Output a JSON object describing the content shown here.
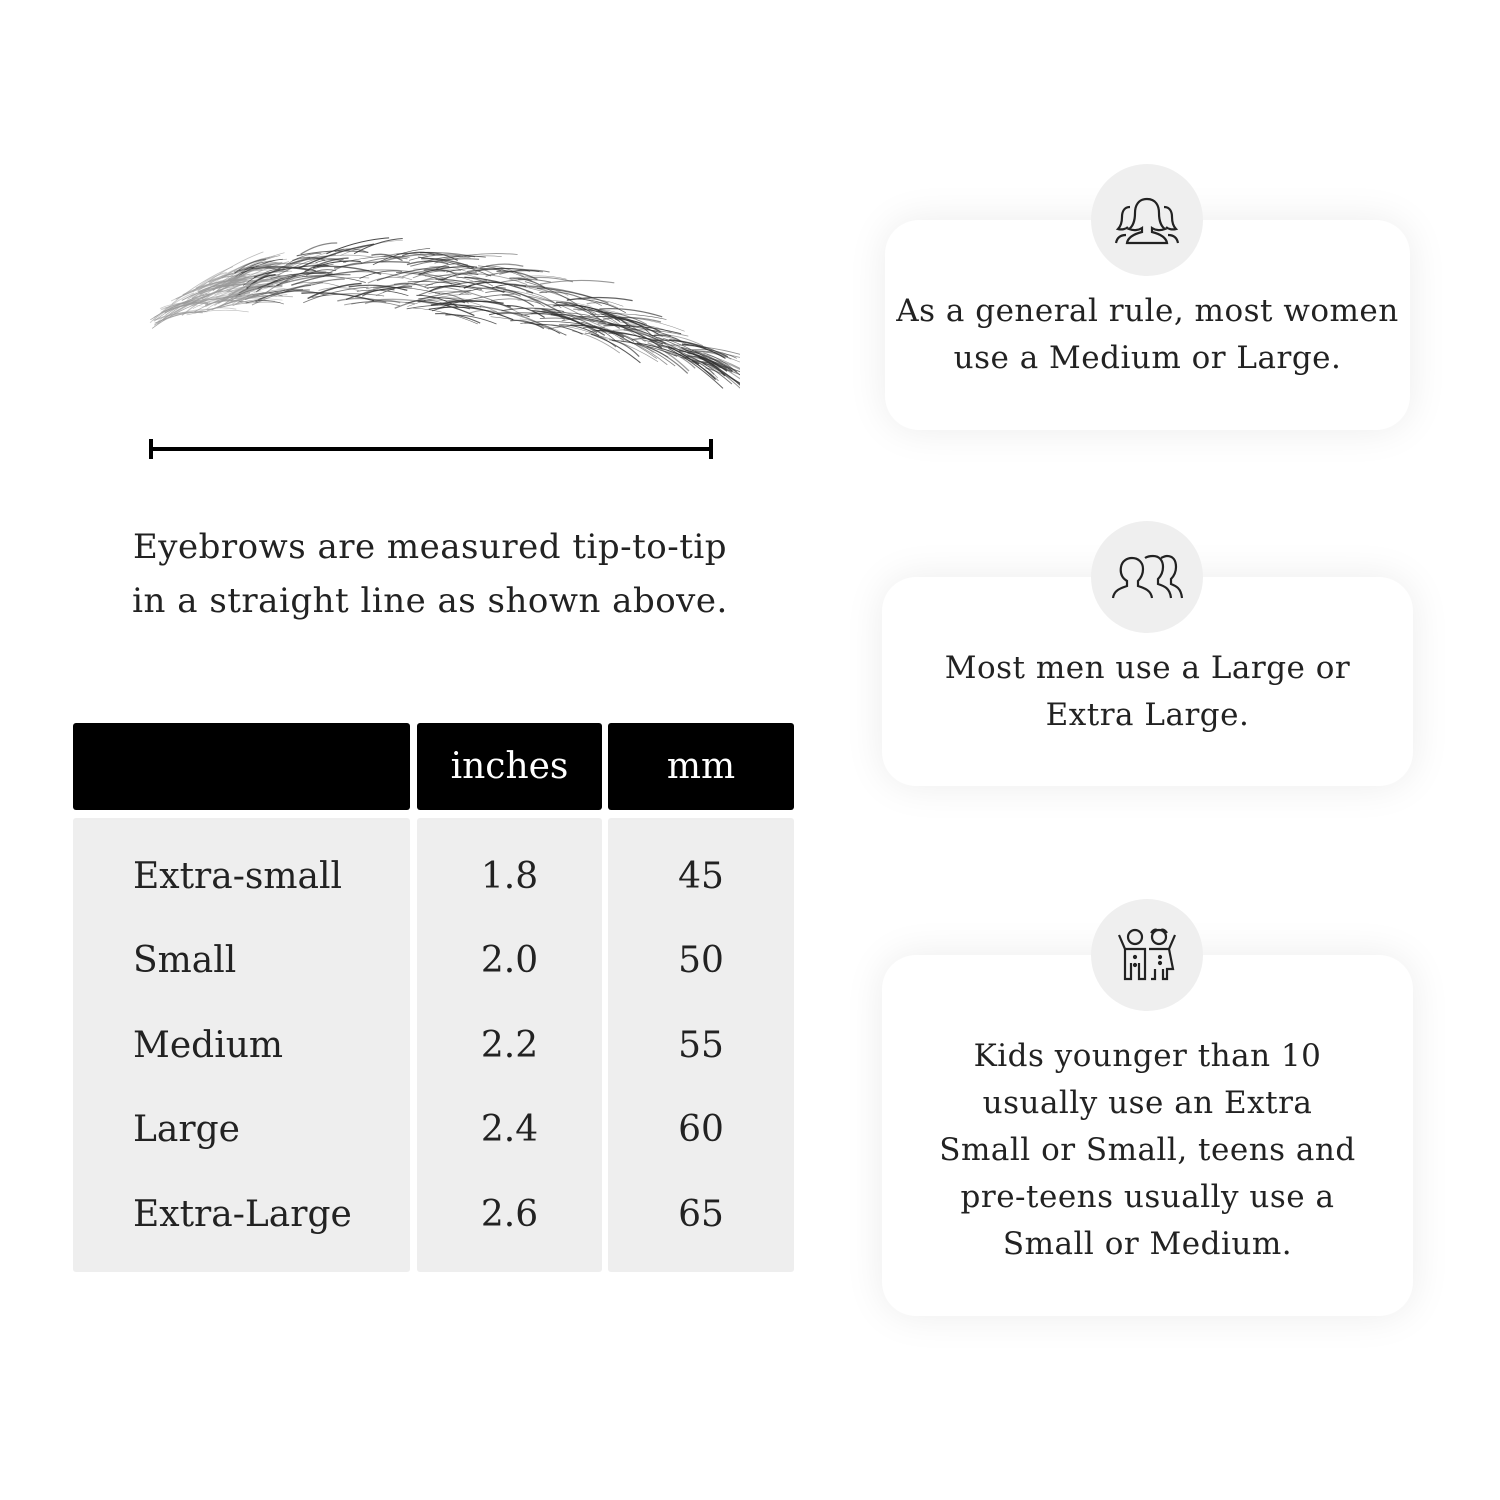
{
  "caption": {
    "line1": "Eyebrows are measured tip-to-tip",
    "line2": "in a straight line as shown above."
  },
  "table": {
    "headers": [
      "",
      "inches",
      "mm"
    ],
    "rows": [
      {
        "size": "Extra-small",
        "inches": "1.8",
        "mm": "45"
      },
      {
        "size": "Small",
        "inches": "2.0",
        "mm": "50"
      },
      {
        "size": "Medium",
        "inches": "2.2",
        "mm": "55"
      },
      {
        "size": "Large",
        "inches": "2.4",
        "mm": "60"
      },
      {
        "size": "Extra-Large",
        "inches": "2.6",
        "mm": "65"
      }
    ]
  },
  "cards": [
    {
      "icon": "women-group-icon",
      "line1": "As a general rule, most women",
      "line2": "use a Medium or Large."
    },
    {
      "icon": "men-group-icon",
      "line1": "Most men use a Large or",
      "line2": "Extra Large."
    },
    {
      "icon": "kids-icon",
      "lines": [
        "Kids younger than 10",
        "usually use an Extra",
        "Small or Small, teens and",
        "pre-teens usually use a",
        "Small or Medium."
      ]
    }
  ],
  "colors": {
    "header_bg": "#000000",
    "column_bg": "#eeeeee",
    "icon_circle": "#efefef"
  }
}
